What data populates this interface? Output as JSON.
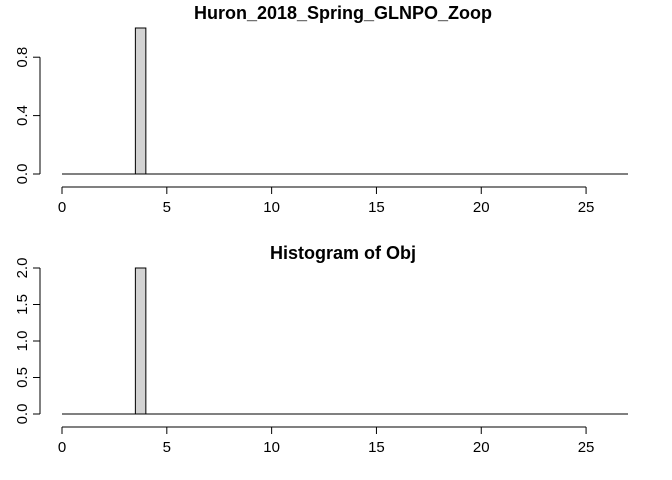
{
  "chart_data": [
    {
      "type": "bar",
      "title": "Huron_2018_Spring_GLNPO_Zoop",
      "xlabel": "",
      "ylabel": "",
      "xlim": [
        0,
        27
      ],
      "ylim": [
        0,
        1
      ],
      "x_ticks": [
        0,
        5,
        10,
        15,
        20,
        25
      ],
      "x_tick_labels": [
        "0",
        "5",
        "10",
        "15",
        "20",
        "25"
      ],
      "y_ticks": [
        0,
        0.4,
        0.8
      ],
      "y_tick_labels": [
        "0.0",
        "0.4",
        "0.8"
      ],
      "bars": [
        {
          "x_start": 3.5,
          "x_end": 4.0,
          "value": 1
        }
      ],
      "grid": false,
      "bar_color": "#d3d3d3"
    },
    {
      "type": "bar",
      "title": "Histogram of Obj",
      "xlabel": "",
      "ylabel": "",
      "xlim": [
        0,
        27
      ],
      "ylim": [
        0,
        2
      ],
      "x_ticks": [
        0,
        5,
        10,
        15,
        20,
        25
      ],
      "x_tick_labels": [
        "0",
        "5",
        "10",
        "15",
        "20",
        "25"
      ],
      "y_ticks": [
        0,
        0.5,
        1,
        1.5,
        2
      ],
      "y_tick_labels": [
        "0.0",
        "0.5",
        "1.0",
        "1.5",
        "2.0"
      ],
      "bars": [
        {
          "x_start": 3.5,
          "x_end": 4.0,
          "value": 2
        }
      ],
      "grid": false,
      "bar_color": "#d3d3d3"
    }
  ]
}
